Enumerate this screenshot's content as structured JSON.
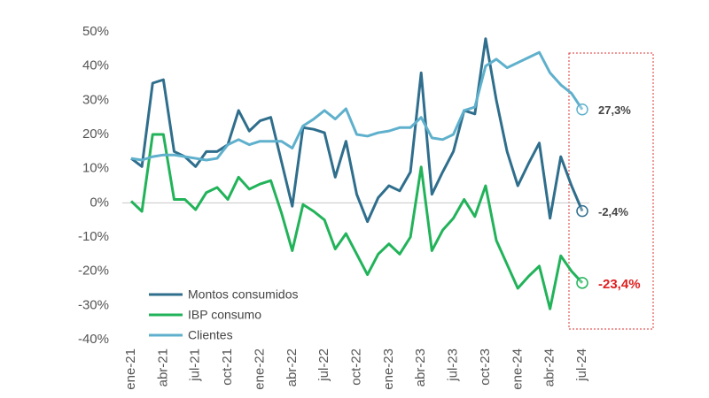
{
  "chart_data": {
    "type": "line",
    "categories": [
      "ene-21",
      null,
      null,
      "abr-21",
      null,
      null,
      "jul-21",
      null,
      null,
      "oct-21",
      null,
      null,
      "ene-22",
      null,
      null,
      "abr-22",
      null,
      null,
      "jul-22",
      null,
      null,
      "oct-22",
      null,
      null,
      "ene-23",
      null,
      null,
      "abr-23",
      null,
      null,
      "jul-23",
      null,
      null,
      "oct-23",
      null,
      null,
      "ene-24",
      null,
      null,
      "abr-24",
      null,
      null,
      "jul-24"
    ],
    "series": [
      {
        "name": "Montos consumidos",
        "color": "#2f6e8c",
        "values": [
          13,
          10.6,
          35,
          36,
          15,
          13.5,
          10.6,
          15,
          15,
          17,
          27,
          21,
          24,
          25,
          12,
          -1,
          22,
          21.5,
          20.5,
          7.5,
          18,
          2.5,
          -5.5,
          1.5,
          5,
          3.5,
          9,
          38,
          2.5,
          9,
          15,
          27,
          26,
          48,
          30,
          15,
          5,
          11.5,
          17.5,
          -4.5,
          13.5,
          5,
          -2.4
        ],
        "value_labels": [
          null,
          null,
          null,
          null,
          null,
          null,
          null,
          null,
          null,
          null,
          null,
          null,
          null,
          null,
          null,
          null,
          null,
          null,
          null,
          null,
          null,
          null,
          null,
          null,
          null,
          null,
          null,
          null,
          null,
          null,
          null,
          null,
          null,
          null,
          null,
          null,
          null,
          null,
          null,
          null,
          null,
          null,
          "-2,4%"
        ]
      },
      {
        "name": "IBP consumo",
        "color": "#22b35a",
        "values": [
          0.5,
          -2.5,
          20,
          20,
          1,
          1,
          -2,
          3,
          4.5,
          1,
          7.5,
          4,
          5.5,
          6.5,
          -3,
          -14,
          -0.5,
          -2.5,
          -5,
          -13.5,
          -9,
          -15,
          -21,
          -15,
          -12,
          -15,
          -10,
          10.5,
          -14,
          -8,
          -4.5,
          1,
          -4,
          5,
          -11,
          -18,
          -25,
          -21.5,
          -18.5,
          -31,
          -15.5,
          -20,
          -23.4
        ],
        "value_labels": [
          null,
          null,
          null,
          null,
          null,
          null,
          null,
          null,
          null,
          null,
          null,
          null,
          null,
          null,
          null,
          null,
          null,
          null,
          null,
          null,
          null,
          null,
          null,
          null,
          null,
          null,
          null,
          null,
          null,
          null,
          null,
          null,
          null,
          null,
          null,
          null,
          null,
          null,
          null,
          null,
          null,
          null,
          "-23,4%"
        ]
      },
      {
        "name": "Clientes",
        "color": "#5fb0cc",
        "values": [
          13,
          12.5,
          13.5,
          14,
          14,
          13.5,
          13,
          12.5,
          13,
          17,
          18.5,
          17,
          18,
          18,
          18,
          16,
          22.5,
          24.5,
          27,
          24.5,
          27.5,
          20,
          19.5,
          20.5,
          21,
          22,
          22,
          25,
          19,
          18.5,
          20,
          27,
          28,
          40,
          42,
          39.5,
          41,
          42.5,
          44,
          38,
          34.5,
          32,
          27.3
        ],
        "value_labels": [
          null,
          null,
          null,
          null,
          null,
          null,
          null,
          null,
          null,
          null,
          null,
          null,
          null,
          null,
          null,
          null,
          null,
          null,
          null,
          null,
          null,
          null,
          null,
          null,
          null,
          null,
          null,
          null,
          null,
          null,
          null,
          null,
          null,
          null,
          null,
          null,
          null,
          null,
          null,
          null,
          null,
          null,
          "27,3%"
        ]
      }
    ],
    "ylim": [
      -40,
      50
    ],
    "yticks": [
      {
        "value": -40,
        "label": "-40%"
      },
      {
        "value": -30,
        "label": "-30%"
      },
      {
        "value": -20,
        "label": "-20%"
      },
      {
        "value": -10,
        "label": "-10%"
      },
      {
        "value": 0,
        "label": "0%"
      },
      {
        "value": 10,
        "label": "10%"
      },
      {
        "value": 20,
        "label": "20%"
      },
      {
        "value": 30,
        "label": "30%"
      },
      {
        "value": 40,
        "label": "40%"
      },
      {
        "value": 50,
        "label": "50%"
      }
    ],
    "grid": false,
    "legend": "lower left"
  }
}
